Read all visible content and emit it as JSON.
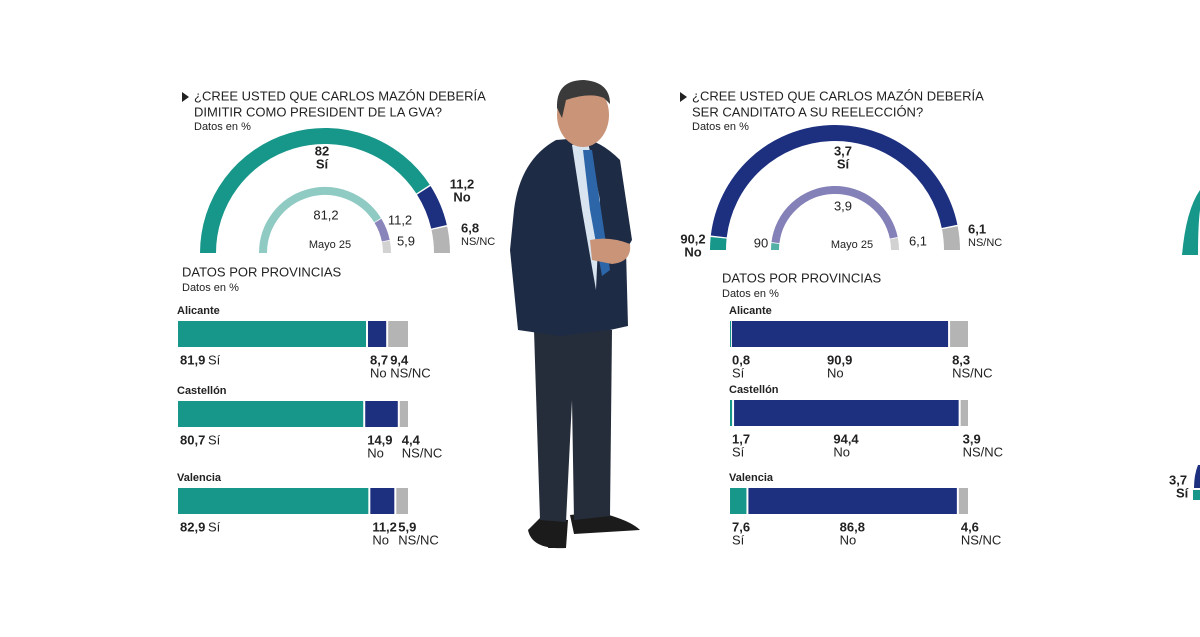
{
  "chart_data": [
    {
      "type": "gauge",
      "title_lines": [
        "¿CREE USTED QUE CARLOS MAZÓN DEBERÍA",
        "DIMITIR COMO PRESIDENT DE LA GVA?"
      ],
      "note": "Datos en %",
      "comparison_label": "Mayo 25",
      "series": [
        {
          "name": "Sí",
          "color": "#17968a",
          "previous_color": "#8fcac3",
          "values": [
            82,
            81.2
          ],
          "value_labels": [
            "82",
            "81,2"
          ]
        },
        {
          "name": "No",
          "color": "#1d2f7f",
          "previous_color": "#8985bb",
          "values": [
            11.2,
            11.2
          ],
          "value_labels": [
            "11,2",
            "11,2"
          ]
        },
        {
          "name": "NS/NC",
          "color": "#b4b4b4",
          "previous_color": "#d2d2d2",
          "values": [
            6.8,
            5.9
          ],
          "value_labels": [
            "6,8",
            "5,9"
          ]
        }
      ],
      "provinces": {
        "title": "DATOS POR PROVINCIAS",
        "note": "Datos en %",
        "categories": [
          "Alicante",
          "Castellón",
          "Valencia"
        ],
        "series": [
          {
            "name": "Sí",
            "color": "#17968a",
            "values": [
              81.9,
              80.7,
              82.9
            ],
            "value_labels": [
              "81,9",
              "80,7",
              "82,9"
            ]
          },
          {
            "name": "No",
            "color": "#1d2f7f",
            "values": [
              8.7,
              14.9,
              11.2
            ],
            "value_labels": [
              "8,7",
              "14,9",
              "11,2"
            ]
          },
          {
            "name": "NS/NC",
            "color": "#b4b4b4",
            "values": [
              9.4,
              4.4,
              5.9
            ],
            "value_labels": [
              "9,4",
              "4,4",
              "5,9"
            ]
          }
        ]
      }
    },
    {
      "type": "gauge",
      "title_lines": [
        "¿CREE USTED QUE CARLOS MAZÓN DEBERÍA",
        "SER CANDITATO A SU REELECCIÓN?"
      ],
      "note": "Datos en %",
      "comparison_label": "Mayo 25",
      "series": [
        {
          "name": "Sí",
          "color": "#17968a",
          "previous_color": "#52b0a6",
          "values": [
            3.7,
            3.9
          ],
          "value_labels": [
            "3,7",
            "3,9"
          ]
        },
        {
          "name": "No",
          "color": "#1d2f7f",
          "previous_color": "#8480b8",
          "values": [
            90.2,
            90
          ],
          "value_labels": [
            "90,2",
            "90"
          ]
        },
        {
          "name": "NS/NC",
          "color": "#b4b4b4",
          "previous_color": "#d2d2d2",
          "values": [
            6.1,
            6.1
          ],
          "value_labels": [
            "6,1",
            "6,1"
          ]
        }
      ],
      "provinces": {
        "title": "DATOS POR PROVINCIAS",
        "note": "Datos en %",
        "categories": [
          "Alicante",
          "Castellón",
          "Valencia"
        ],
        "series": [
          {
            "name": "Sí",
            "color": "#17968a",
            "values": [
              0.8,
              1.7,
              7.6
            ],
            "value_labels": [
              "0,8",
              "1,7",
              "7,6"
            ]
          },
          {
            "name": "No",
            "color": "#1d2f7f",
            "values": [
              90.9,
              94.4,
              86.8
            ],
            "value_labels": [
              "90,9",
              "94,4",
              "86,8"
            ]
          },
          {
            "name": "NS/NC",
            "color": "#b4b4b4",
            "values": [
              8.3,
              3.9,
              4.6
            ],
            "value_labels": [
              "8,3",
              "3,9",
              "4,6"
            ]
          }
        ]
      }
    }
  ],
  "edge_fragment": {
    "value_label": "3,7",
    "name": "Sí"
  }
}
